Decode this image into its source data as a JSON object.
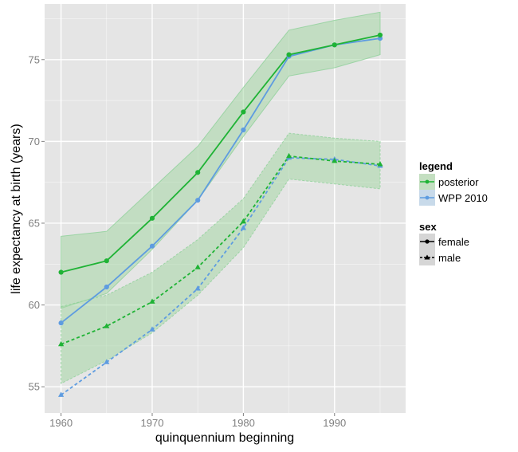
{
  "chart_data": {
    "type": "line",
    "title": "",
    "xlabel": "quinquennium beginning",
    "ylabel": "life expectancy at birth (years)",
    "xlim": [
      1958.2,
      1997.8
    ],
    "ylim": [
      53.4,
      78.4
    ],
    "x_ticks": [
      1960,
      1970,
      1980,
      1990
    ],
    "x_tick_labels": [
      "1960",
      "1970",
      "1980",
      "1990"
    ],
    "y_ticks": [
      55,
      60,
      65,
      70,
      75
    ],
    "y_tick_labels": [
      "55",
      "60",
      "65",
      "70",
      "75"
    ],
    "grid": true,
    "legend_placement": "right",
    "colors": {
      "posterior": "#1fb335",
      "wpp": "#5e9ce0",
      "band_fill": "#9fd6a0",
      "band_edge": "#8fd19a",
      "panel_bg": "#e5e5e5",
      "grid": "#ffffff"
    },
    "x": [
      1960,
      1965,
      1970,
      1975,
      1980,
      1985,
      1990,
      1995
    ],
    "series": [
      {
        "name": "posterior",
        "sex": "female",
        "values": [
          62.0,
          62.7,
          65.3,
          68.1,
          71.8,
          75.3,
          75.9,
          76.5
        ],
        "lower": [
          59.8,
          60.7,
          63.4,
          66.4,
          70.3,
          74.0,
          74.5,
          75.3
        ],
        "upper": [
          64.2,
          64.5,
          67.1,
          69.7,
          73.3,
          76.8,
          77.4,
          77.9
        ]
      },
      {
        "name": "WPP 2010",
        "sex": "female",
        "values": [
          58.9,
          61.1,
          63.6,
          66.4,
          70.7,
          75.2,
          75.9,
          76.3
        ]
      },
      {
        "name": "posterior",
        "sex": "male",
        "values": [
          57.6,
          58.7,
          60.2,
          62.3,
          65.1,
          69.1,
          68.8,
          68.6
        ],
        "lower": [
          55.2,
          56.6,
          58.3,
          60.6,
          63.5,
          67.7,
          67.4,
          67.1
        ],
        "upper": [
          59.9,
          60.6,
          62.0,
          64.0,
          66.5,
          70.5,
          70.2,
          70.0
        ]
      },
      {
        "name": "WPP 2010",
        "sex": "male",
        "values": [
          54.5,
          56.5,
          58.5,
          61.0,
          64.7,
          69.0,
          68.9,
          68.5
        ]
      }
    ],
    "legend": {
      "title": "legend",
      "items": [
        "posterior",
        "WPP 2010"
      ]
    },
    "sex_legend": {
      "title": "sex",
      "items": [
        "female",
        "male"
      ]
    }
  }
}
